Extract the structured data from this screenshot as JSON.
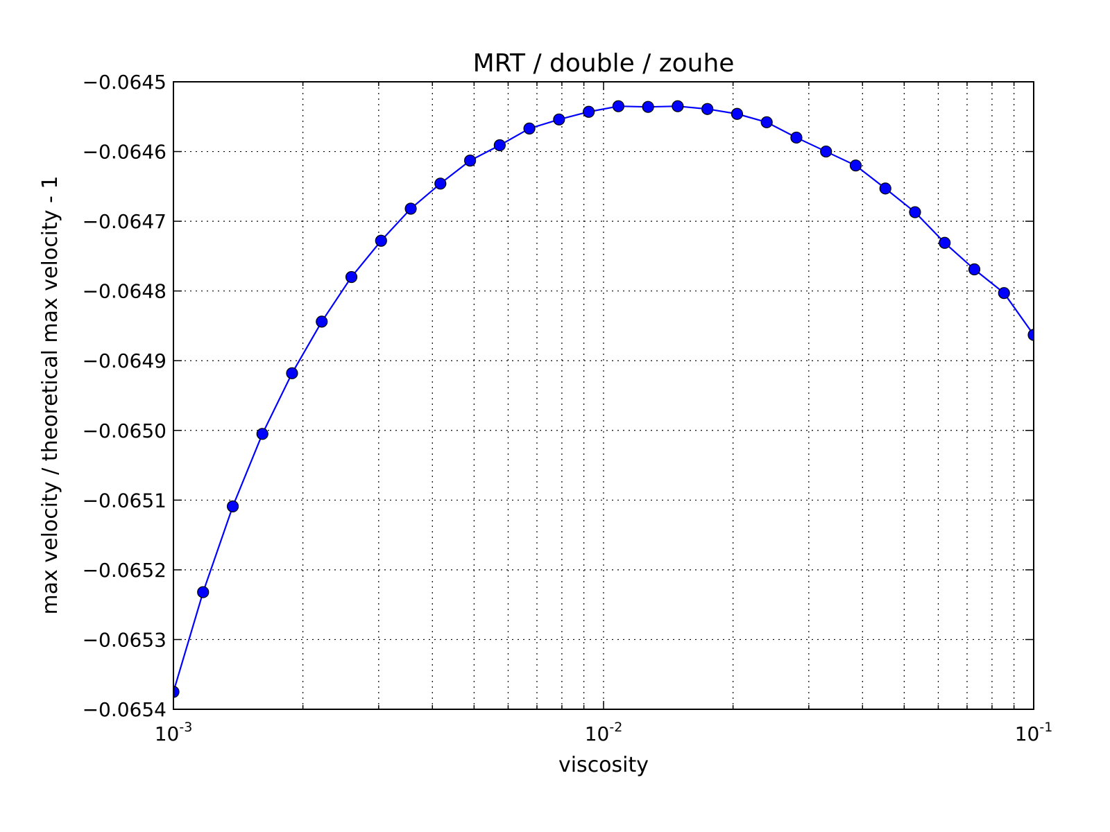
{
  "chart_data": {
    "type": "line",
    "title": "MRT / double / zouhe",
    "xlabel": "viscosity",
    "ylabel": "max velocity / theoretical max velocity - 1",
    "x_scale": "log",
    "xlim": [
      0.001,
      0.1
    ],
    "ylim": [
      -0.0654,
      -0.0645
    ],
    "grid": true,
    "x_ticks": [
      {
        "value": 0.001,
        "base": "10",
        "exp": "-3"
      },
      {
        "value": 0.01,
        "base": "10",
        "exp": "-2"
      },
      {
        "value": 0.1,
        "base": "10",
        "exp": "-1"
      }
    ],
    "y_ticks": [
      {
        "value": -0.0645,
        "label": "−0.0645"
      },
      {
        "value": -0.0646,
        "label": "−0.0646"
      },
      {
        "value": -0.0647,
        "label": "−0.0647"
      },
      {
        "value": -0.0648,
        "label": "−0.0648"
      },
      {
        "value": -0.0649,
        "label": "−0.0649"
      },
      {
        "value": -0.065,
        "label": "−0.0650"
      },
      {
        "value": -0.0651,
        "label": "−0.0651"
      },
      {
        "value": -0.0652,
        "label": "−0.0652"
      },
      {
        "value": -0.0653,
        "label": "−0.0653"
      },
      {
        "value": -0.0654,
        "label": "−0.0654"
      }
    ],
    "series": [
      {
        "color": "#0000ff",
        "marker": "circle",
        "x": [
          0.001,
          0.001172,
          0.001374,
          0.00161,
          0.001887,
          0.002212,
          0.002593,
          0.003039,
          0.003562,
          0.004175,
          0.004894,
          0.005736,
          0.006723,
          0.00788,
          0.009237,
          0.010826,
          0.01269,
          0.014874,
          0.017434,
          0.020434,
          0.023951,
          0.028072,
          0.032903,
          0.038566,
          0.045204,
          0.052983,
          0.062102,
          0.07279,
          0.085316,
          0.1
        ],
        "y": [
          -0.065375,
          -0.065232,
          -0.065109,
          -0.065005,
          -0.064918,
          -0.064844,
          -0.06478,
          -0.064728,
          -0.064682,
          -0.064646,
          -0.064613,
          -0.064591,
          -0.064567,
          -0.064554,
          -0.064543,
          -0.064535,
          -0.064536,
          -0.064535,
          -0.064539,
          -0.064546,
          -0.064558,
          -0.06458,
          -0.0646,
          -0.06462,
          -0.064653,
          -0.064687,
          -0.064731,
          -0.064769,
          -0.064803,
          -0.064863
        ]
      }
    ]
  }
}
